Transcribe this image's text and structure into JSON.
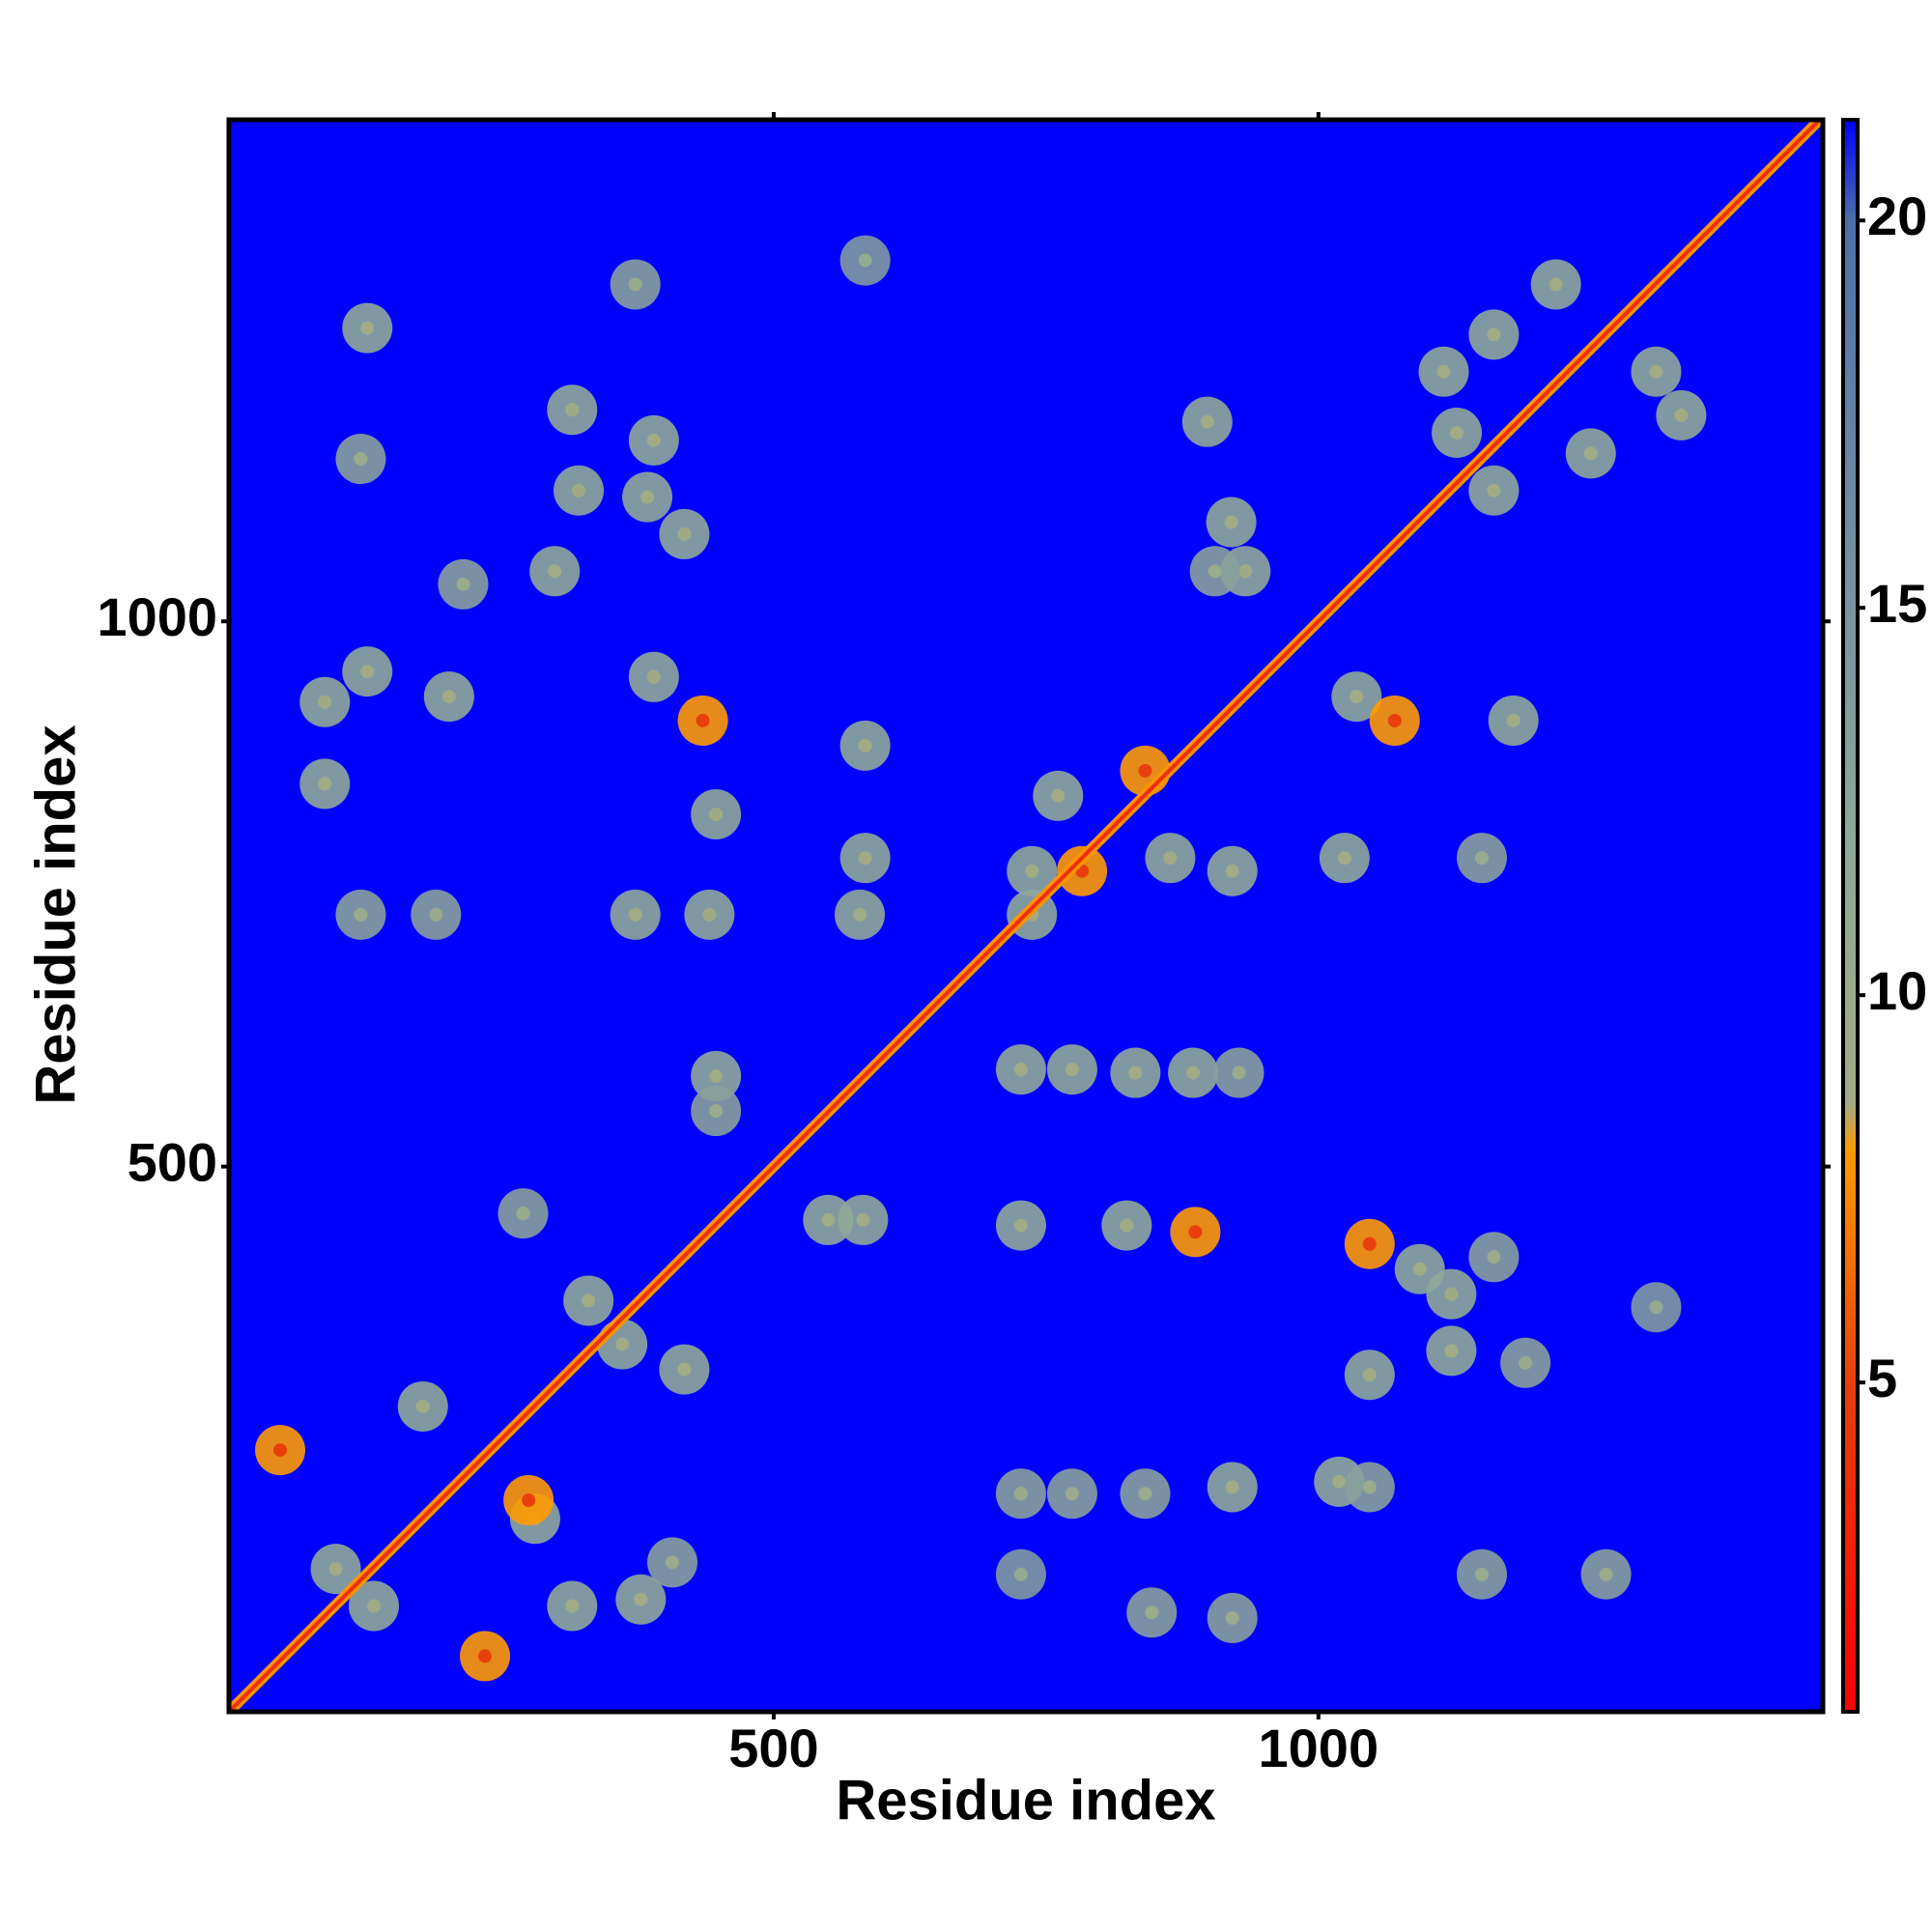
{
  "chart_data": {
    "type": "heatmap",
    "xlabel": "Residue index",
    "ylabel": "Residue index",
    "xlim": [
      0,
      1463
    ],
    "ylim": [
      0,
      1460
    ],
    "xticks": [
      500,
      1000
    ],
    "yticks": [
      500,
      1000
    ],
    "clim": [
      0.75,
      21.3
    ],
    "cticks": [
      5,
      10,
      15,
      20
    ],
    "colorscale": [
      [
        0.75,
        "#ff0000"
      ],
      [
        5,
        "#e8400c"
      ],
      [
        8,
        "#ff9a00"
      ],
      [
        8.6,
        "#a2ab84"
      ],
      [
        12,
        "#8ea898"
      ],
      [
        17,
        "#6a86a6"
      ],
      [
        20,
        "#4a70aa"
      ],
      [
        21.3,
        "#0000ff"
      ]
    ],
    "diagonal_value": 3.8,
    "contacts": {
      "x": [
        727,
        824,
        887,
        1047,
        1093,
        1122,
        1161,
        1122,
        1047,
        1190,
        1310,
        727,
        774,
        832,
        885,
        927,
        550,
        582,
        447,
        447,
        727,
        774,
        841,
        921,
        1019,
        1047,
        1150,
        1264,
        847,
        921,
        727,
        407,
        378,
        315,
        418,
        361,
        330,
        270,
        281,
        235,
        178,
        275,
        133,
        98,
        47,
        933,
        920,
        1035,
        1070,
        1179,
        841,
        761,
        737,
        783,
        864,
        921,
        1024,
        1150,
        737,
        579,
        441,
        373,
        190,
        121,
        584,
        584,
        447,
        435,
        390,
        202,
        127,
        88,
        88,
        898,
        905,
        1161,
        1218,
        1115,
        1127,
        1161,
        1250,
        1310,
        1333,
        321,
        384,
        418,
        299,
        315,
        390,
        127,
        373,
        584,
        121,
        215
      ],
      "y": [
        446,
        446,
        440,
        429,
        406,
        383,
        417,
        331,
        309,
        320,
        371,
        589,
        589,
        586,
        586,
        586,
        451,
        451,
        583,
        551,
        200,
        200,
        200,
        206,
        211,
        206,
        126,
        126,
        91,
        86,
        126,
        137,
        103,
        97,
        314,
        337,
        377,
        457,
        177,
        51,
        280,
        194,
        97,
        131,
        240,
        1046,
        1091,
        931,
        909,
        909,
        863,
        840,
        771,
        771,
        783,
        771,
        783,
        783,
        731,
        731,
        731,
        731,
        731,
        731,
        783,
        886,
        823,
        909,
        949,
        931,
        954,
        926,
        851,
        1183,
        1046,
        1263,
        1309,
        1229,
        1173,
        1120,
        1154,
        1229,
        1189,
        1120,
        1114,
        1080,
        1046,
        1194,
        1166,
        1269,
        1309,
        1331,
        1149,
        1034
      ],
      "values": [
        12,
        12,
        8,
        8,
        12,
        12,
        13,
        12,
        12,
        13,
        14,
        12,
        12,
        12,
        12,
        13,
        12,
        12,
        12,
        13,
        13,
        13,
        13,
        12,
        12,
        13,
        13,
        13,
        13,
        13,
        14,
        13,
        12,
        12,
        12,
        12,
        12,
        13,
        12,
        8,
        12,
        8,
        12,
        12,
        8,
        12,
        12,
        12,
        8,
        12,
        8,
        12,
        12,
        8,
        12,
        12,
        12,
        13,
        12,
        12,
        12,
        12,
        13,
        13,
        12,
        12,
        12,
        8,
        12,
        12,
        12,
        12,
        12,
        12,
        13,
        12,
        12,
        12,
        12,
        12,
        12,
        12,
        12,
        12,
        12,
        12,
        12,
        12,
        12,
        12,
        13,
        14,
        13,
        13
      ]
    }
  }
}
